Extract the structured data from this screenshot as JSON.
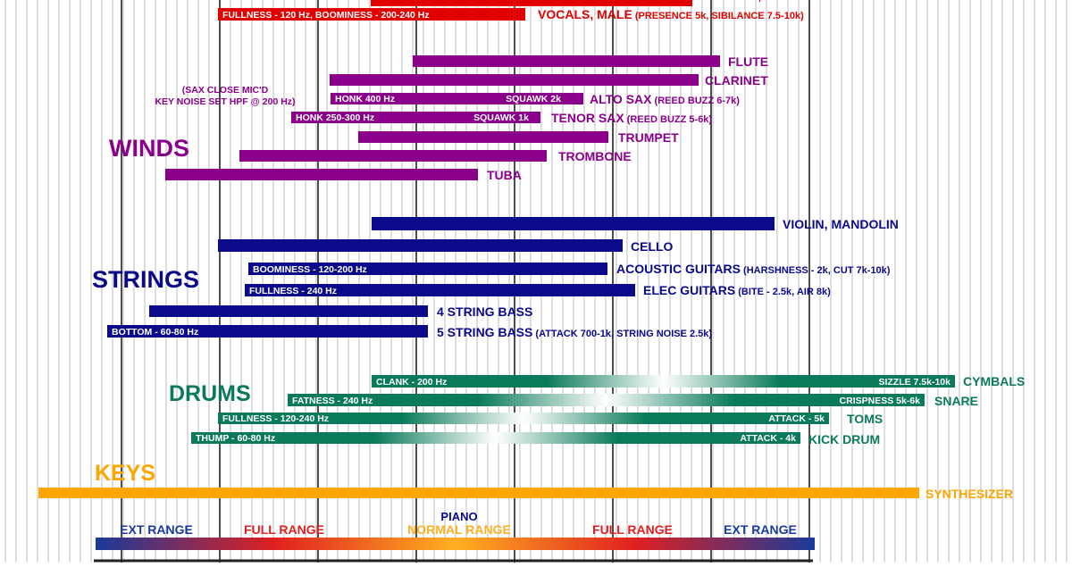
{
  "chart_data": {
    "type": "bar",
    "title": "",
    "xlabel": "",
    "ylabel": "",
    "grid": true,
    "colors": {
      "vocals": "#e00000",
      "winds": "#8b008b",
      "strings": "#0a0a8a",
      "drums": "#0a7a5a",
      "keys": "#ffa500",
      "piano_ext": "#1a3a9a",
      "piano_full": "#e02020",
      "piano_normal": "#ffb020"
    },
    "groups": [
      {
        "key": "winds",
        "label": "WINDS",
        "color": "#8b008b"
      },
      {
        "key": "strings",
        "label": "STRINGS",
        "color": "#0a0a8a"
      },
      {
        "key": "drums",
        "label": "DRUMS",
        "color": "#0a7a5a"
      },
      {
        "key": "keys",
        "label": "KEYS",
        "color": "#ffa500"
      }
    ],
    "instruments": [
      {
        "key": "vocals_female",
        "group": "vocals",
        "label": "VOCALS, FEMALE",
        "note": ""
      },
      {
        "key": "vocals_male",
        "group": "vocals",
        "label": "VOCALS, MALE",
        "note": "(PRESENCE 5k, SIBILANCE 7.5-10k)",
        "inner": [
          {
            "text": "FULLNESS - 120 Hz, BOOMINESS - 200-240 Hz",
            "side": "left"
          }
        ]
      },
      {
        "key": "flute",
        "group": "winds",
        "label": "FLUTE",
        "note": ""
      },
      {
        "key": "clarinet",
        "group": "winds",
        "label": "CLARINET",
        "note": ""
      },
      {
        "key": "alto_sax",
        "group": "winds",
        "label": "ALTO SAX",
        "note": "(REED BUZZ 6-7k)",
        "inner": [
          {
            "text": "HONK 400 Hz",
            "side": "left"
          },
          {
            "text": "SQUAWK  2k",
            "side": "right"
          }
        ]
      },
      {
        "key": "tenor_sax",
        "group": "winds",
        "label": "TENOR SAX",
        "note": "(REED BUZZ 5-6k)",
        "inner": [
          {
            "text": "HONK 250-300 Hz",
            "side": "left"
          },
          {
            "text": "SQUAWK  1k",
            "side": "right"
          }
        ]
      },
      {
        "key": "trumpet",
        "group": "winds",
        "label": "TRUMPET",
        "note": ""
      },
      {
        "key": "trombone",
        "group": "winds",
        "label": "TROMBONE",
        "note": ""
      },
      {
        "key": "tuba",
        "group": "winds",
        "label": "TUBA",
        "note": ""
      },
      {
        "key": "violin",
        "group": "strings",
        "label": "VIOLIN, MANDOLIN",
        "note": ""
      },
      {
        "key": "cello",
        "group": "strings",
        "label": "CELLO",
        "note": ""
      },
      {
        "key": "acoustic_guitars",
        "group": "strings",
        "label": "ACOUSTIC GUITARS",
        "note": "(HARSHNESS - 2k, CUT 7k-10k)",
        "inner": [
          {
            "text": "BOOMINESS - 120-200 Hz",
            "side": "left"
          }
        ]
      },
      {
        "key": "elec_guitars",
        "group": "strings",
        "label": "ELEC GUITARS",
        "note": "(BITE - 2.5k, AIR 8k)",
        "inner": [
          {
            "text": "FULLNESS - 240 Hz",
            "side": "left"
          }
        ]
      },
      {
        "key": "bass4",
        "group": "strings",
        "label": "4 STRING BASS",
        "note": ""
      },
      {
        "key": "bass5",
        "group": "strings",
        "label": "5 STRING BASS",
        "note": "(ATTACK 700-1k, STRING NOISE 2.5k)",
        "inner": [
          {
            "text": "BOTTOM - 60-80 Hz",
            "side": "left"
          }
        ]
      },
      {
        "key": "cymbals",
        "group": "drums",
        "label": "CYMBALS",
        "note": "",
        "inner": [
          {
            "text": "CLANK - 200 Hz",
            "side": "left"
          },
          {
            "text": "SIZZLE 7.5k-10k",
            "side": "right"
          }
        ]
      },
      {
        "key": "snare",
        "group": "drums",
        "label": "SNARE",
        "note": "",
        "inner": [
          {
            "text": "FATNESS - 240 Hz",
            "side": "left"
          },
          {
            "text": "CRISPNESS 5k-6k",
            "side": "right"
          }
        ]
      },
      {
        "key": "toms",
        "group": "drums",
        "label": "TOMS",
        "note": "",
        "inner": [
          {
            "text": "FULLNESS - 120-240 Hz",
            "side": "left"
          },
          {
            "text": "ATTACK - 5k",
            "side": "right"
          }
        ]
      },
      {
        "key": "kick",
        "group": "drums",
        "label": "KICK DRUM",
        "note": "",
        "inner": [
          {
            "text": "THUMP - 60-80 Hz",
            "side": "left"
          },
          {
            "text": "ATTACK - 4k",
            "side": "right"
          }
        ]
      },
      {
        "key": "synth",
        "group": "keys",
        "label": "SYNTHESIZER",
        "note": ""
      }
    ],
    "side_note": [
      "(SAX CLOSE MIC'D",
      "KEY NOISE SET HPF @ 200 Hz)"
    ],
    "piano": {
      "title": "PIANO",
      "segments": [
        "EXT RANGE",
        "FULL RANGE",
        "NORMAL RANGE",
        "FULL RANGE",
        "EXT RANGE"
      ]
    }
  }
}
